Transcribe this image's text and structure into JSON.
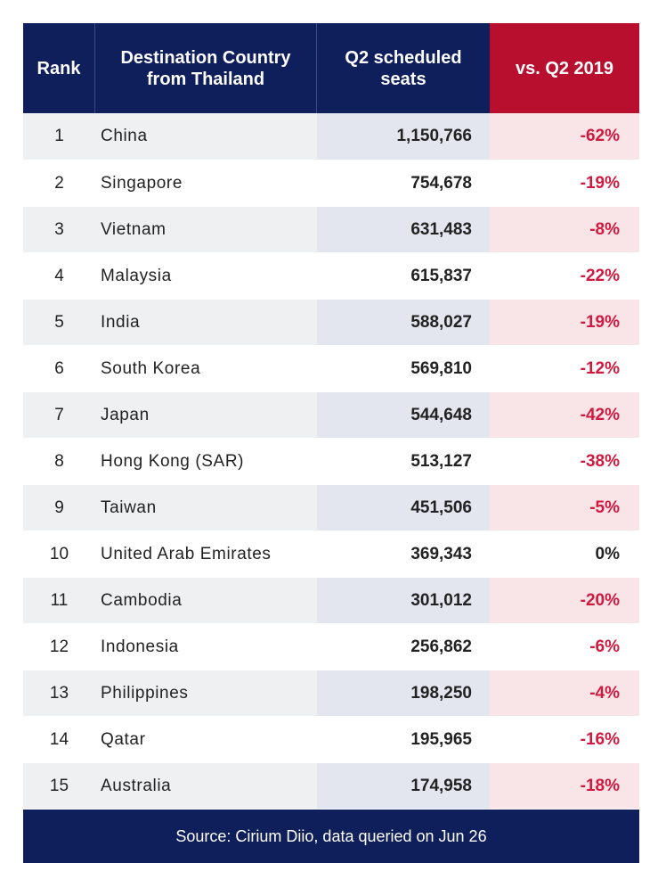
{
  "chart_data": {
    "type": "table",
    "columns": [
      "Rank",
      "Destination Country from Thailand",
      "Q2 scheduled seats",
      "vs. Q2 2019"
    ],
    "rows": [
      {
        "rank": "1",
        "country": "China",
        "seats": "1,150,766",
        "vs": "-62%"
      },
      {
        "rank": "2",
        "country": "Singapore",
        "seats": "754,678",
        "vs": "-19%"
      },
      {
        "rank": "3",
        "country": "Vietnam",
        "seats": "631,483",
        "vs": "-8%"
      },
      {
        "rank": "4",
        "country": "Malaysia",
        "seats": "615,837",
        "vs": "-22%"
      },
      {
        "rank": "5",
        "country": "India",
        "seats": "588,027",
        "vs": "-19%"
      },
      {
        "rank": "6",
        "country": "South Korea",
        "seats": "569,810",
        "vs": "-12%"
      },
      {
        "rank": "7",
        "country": "Japan",
        "seats": "544,648",
        "vs": "-42%"
      },
      {
        "rank": "8",
        "country": "Hong Kong (SAR)",
        "seats": "513,127",
        "vs": "-38%"
      },
      {
        "rank": "9",
        "country": "Taiwan",
        "seats": "451,506",
        "vs": "-5%"
      },
      {
        "rank": "10",
        "country": "United Arab Emirates",
        "seats": "369,343",
        "vs": "0%"
      },
      {
        "rank": "11",
        "country": "Cambodia",
        "seats": "301,012",
        "vs": "-20%"
      },
      {
        "rank": "12",
        "country": "Indonesia",
        "seats": "256,862",
        "vs": "-6%"
      },
      {
        "rank": "13",
        "country": "Philippines",
        "seats": "198,250",
        "vs": "-4%"
      },
      {
        "rank": "14",
        "country": "Qatar",
        "seats": "195,965",
        "vs": "-16%"
      },
      {
        "rank": "15",
        "country": "Australia",
        "seats": "174,958",
        "vs": "-18%"
      }
    ],
    "source": "Source: Cirium Diio, data queried on Jun 26"
  },
  "colors": {
    "header_navy": "#0f1f5c",
    "header_red": "#b80f2e",
    "negative_text": "#d1193f",
    "neutral_text": "#222222"
  }
}
